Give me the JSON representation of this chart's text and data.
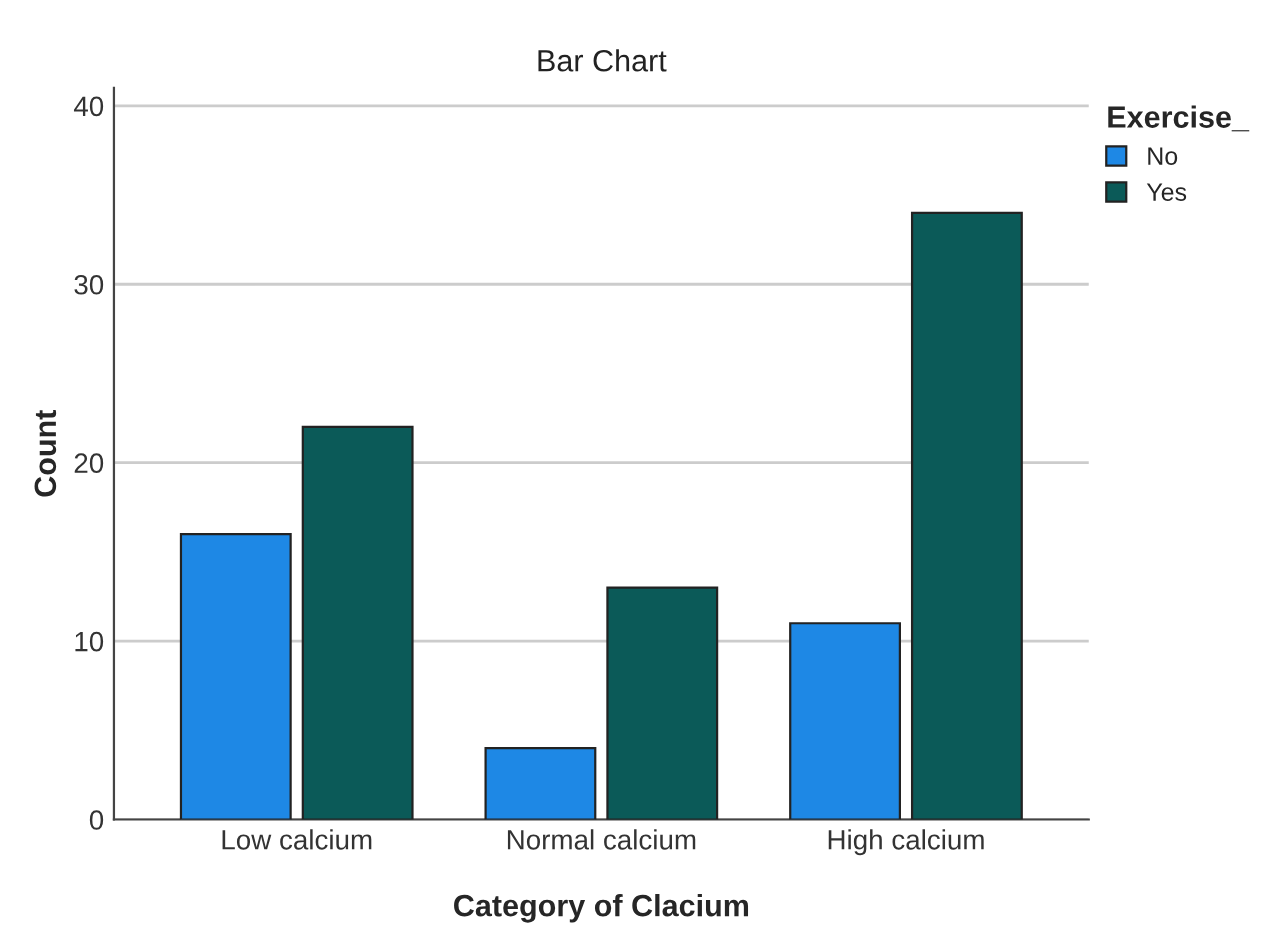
{
  "chart_data": {
    "type": "bar",
    "title": "Bar Chart",
    "xlabel": "Category of Clacium",
    "ylabel": "Count",
    "categories": [
      "Low calcium",
      "Normal calcium",
      "High calcium"
    ],
    "series": [
      {
        "name": "No",
        "color": "#1e88e5",
        "values": [
          16,
          4,
          11
        ]
      },
      {
        "name": "Yes",
        "color": "#0b5a58",
        "values": [
          22,
          13,
          34
        ]
      }
    ],
    "ylim": [
      0,
      41
    ],
    "yticks": [
      0,
      10,
      20,
      30,
      40
    ],
    "grid": "y",
    "legend": "top right",
    "legend_title": "Exercise_"
  }
}
